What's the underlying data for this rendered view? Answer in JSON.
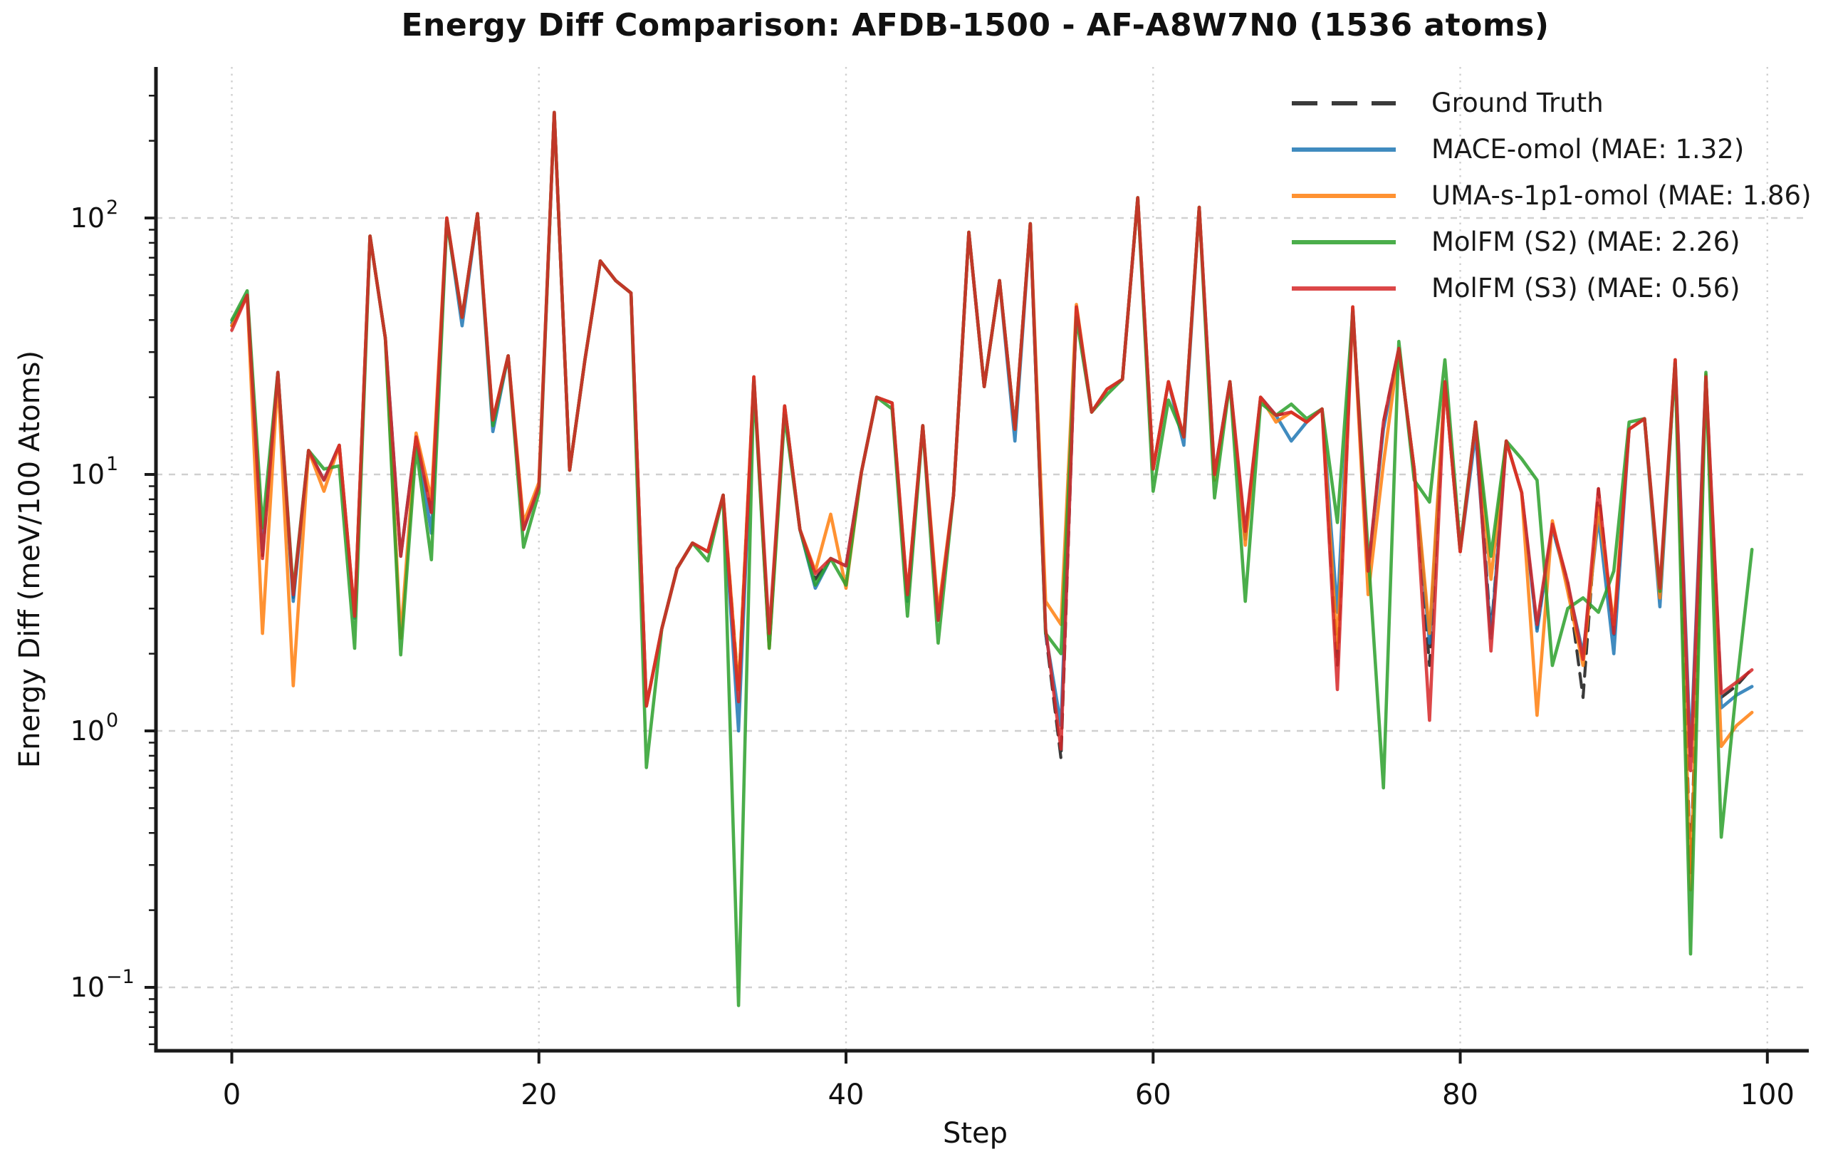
{
  "title": "Energy Diff Comparison: AFDB-1500 - AF-A8W7N0 (1536 atoms)",
  "axes": {
    "xlabel": "Step",
    "ylabel": "Energy Diff (meV/100 Atoms)",
    "x_ticks": [
      0,
      20,
      40,
      60,
      80,
      100
    ],
    "y_tick_exponents": [
      2,
      1,
      0,
      -1
    ]
  },
  "colors": {
    "ground_truth": "#3a3a3a",
    "mace": "#1f77b4",
    "uma": "#ff7f0e",
    "molfm_s2": "#2ca02c",
    "molfm_s3": "#d62728",
    "grid": "#cccccc",
    "spine": "#1a1a1a"
  },
  "chart_data": {
    "type": "line",
    "title": "Energy Diff Comparison: AFDB-1500 - AF-A8W7N0 (1536 atoms)",
    "xlabel": "Step",
    "ylabel": "Energy Diff (meV/100 Atoms)",
    "yscale": "log",
    "ylim": [
      0.04,
      385
    ],
    "xlim": [
      -5,
      104
    ],
    "grid": true,
    "legend_position": "upper right",
    "x_start": 0,
    "x_step": 1,
    "n_points": 100,
    "series": [
      {
        "name": "Ground Truth",
        "color": "#3a3a3a",
        "dashed": true,
        "values": [
          38,
          50,
          4.8,
          25,
          3.3,
          12.4,
          9.5,
          13,
          2.8,
          85,
          34,
          4.8,
          14,
          7.1,
          100,
          41,
          104,
          16.3,
          29,
          6.1,
          9,
          258,
          10.4,
          28,
          68,
          57,
          51,
          1.25,
          2.5,
          4.3,
          5.4,
          5,
          8.3,
          1.45,
          24,
          2.1,
          18.5,
          6.1,
          3.9,
          4.7,
          4.4,
          10.2,
          20,
          19,
          3.3,
          15.5,
          2.7,
          8.3,
          88,
          22,
          57,
          15,
          95,
          2.4,
          0.78,
          45,
          17.5,
          21.5,
          23.5,
          120,
          10.5,
          23,
          14,
          110,
          10,
          23,
          5.8,
          20,
          17,
          17.5,
          16,
          18,
          1.8,
          45,
          4.2,
          16,
          31,
          10.5,
          1.8,
          23,
          5,
          16,
          2.4,
          13.5,
          8.5,
          2.5,
          6.2,
          3.8,
          1.35,
          8.8,
          2.3,
          15,
          16.5,
          3.5,
          28,
          0.28,
          24,
          1.35,
          1.5,
          1.75
        ]
      },
      {
        "name": "MACE-omol (MAE: 1.32)",
        "color": "#1f77b4",
        "dashed": false,
        "values": [
          39,
          50,
          5,
          25,
          3.2,
          12.4,
          9.5,
          13,
          2.75,
          85,
          34,
          4.8,
          14,
          5.9,
          100,
          38,
          104,
          14.7,
          29,
          6.1,
          9,
          258,
          10.4,
          28,
          68,
          57,
          51,
          1.25,
          2.5,
          4.3,
          5.4,
          5,
          8.3,
          1,
          24,
          2.15,
          18.5,
          6.1,
          3.6,
          4.7,
          4.4,
          10.2,
          20,
          19,
          3.2,
          15.5,
          2.7,
          8.3,
          88,
          22,
          57,
          13.5,
          95,
          2.4,
          1.05,
          45,
          17.5,
          21.5,
          23.5,
          120,
          10.5,
          23,
          13,
          110,
          10,
          23,
          5.6,
          20,
          17,
          13.5,
          16,
          18,
          2.9,
          45,
          4.2,
          15,
          31,
          10.5,
          2.2,
          23,
          5,
          14.5,
          2.3,
          13.5,
          8.5,
          2.45,
          6.2,
          3.7,
          2,
          6.8,
          2,
          15,
          16.5,
          3.05,
          28,
          0.8,
          24,
          1.23,
          1.38,
          1.49
        ]
      },
      {
        "name": "UMA-s-1p1-omol (MAE: 1.86)",
        "color": "#ff7f0e",
        "dashed": false,
        "values": [
          38,
          50,
          2.4,
          24,
          1.5,
          12.4,
          8.6,
          13,
          2.8,
          85,
          34,
          2.3,
          14.5,
          8,
          100,
          41,
          104,
          16.3,
          29,
          6.5,
          9.3,
          258,
          10.4,
          28,
          68,
          57,
          51,
          1.25,
          2.5,
          4.3,
          5.4,
          5,
          8.3,
          1.45,
          24,
          2.1,
          18.5,
          6.1,
          4.2,
          7,
          3.6,
          10.2,
          20,
          19,
          3.4,
          15.5,
          2.9,
          8.3,
          88,
          22,
          57,
          15,
          95,
          3.2,
          2.6,
          46,
          17.5,
          21.5,
          23.5,
          120,
          10.5,
          23,
          14,
          110,
          9.5,
          23,
          5.3,
          20,
          16,
          17.5,
          16,
          18,
          2.1,
          45,
          3.4,
          11,
          31,
          10.5,
          2.4,
          23,
          5,
          16,
          3.9,
          13.5,
          8.5,
          1.15,
          6.6,
          3.5,
          1.8,
          7.4,
          2.6,
          15,
          16.5,
          3.3,
          28,
          0.24,
          24.5,
          0.87,
          1.05,
          1.18
        ]
      },
      {
        "name": "MolFM (S2) (MAE: 2.26)",
        "color": "#2ca02c",
        "dashed": false,
        "values": [
          40,
          52,
          6.2,
          25,
          3.5,
          12.4,
          10.5,
          10.8,
          2.1,
          85,
          34,
          1.98,
          12.7,
          4.65,
          97,
          41,
          104,
          15.5,
          29,
          5.2,
          8.5,
          258,
          10.4,
          28,
          68,
          57,
          51,
          0.72,
          2.5,
          4.3,
          5.4,
          4.6,
          8.3,
          0.085,
          23,
          2.1,
          17,
          6.1,
          3.7,
          4.7,
          3.7,
          10.2,
          20,
          18,
          2.8,
          15.5,
          2.2,
          8.3,
          88,
          22,
          57,
          15,
          95,
          2.4,
          2,
          41,
          17.5,
          20.5,
          23.5,
          120,
          8.6,
          19.5,
          14,
          110,
          8.1,
          23,
          3.2,
          19,
          17,
          18.8,
          16.5,
          18,
          6.5,
          43,
          5,
          0.6,
          33,
          9.5,
          7.8,
          28,
          5.2,
          16,
          4.8,
          13.5,
          11.5,
          9.5,
          1.8,
          3,
          3.3,
          2.9,
          4.2,
          16,
          16.5,
          3.5,
          27,
          0.135,
          25,
          0.385,
          1.5,
          5.1
        ]
      },
      {
        "name": "MolFM (S3) (MAE: 0.56)",
        "color": "#d62728",
        "dashed": false,
        "values": [
          36.5,
          50,
          4.7,
          25,
          3.4,
          12.4,
          9.5,
          13,
          2.8,
          85,
          34,
          4.8,
          14,
          7.1,
          100,
          41,
          104,
          16.3,
          29,
          6.1,
          9,
          258,
          10.4,
          28,
          68,
          57,
          51,
          1.25,
          2.5,
          4.3,
          5.4,
          5,
          8.3,
          1.3,
          24,
          2.4,
          18.5,
          6.1,
          4.1,
          4.7,
          4.4,
          10.2,
          20,
          19,
          3.4,
          15.5,
          2.7,
          8.3,
          88,
          22,
          57,
          15,
          95,
          2.5,
          0.85,
          45,
          17.5,
          21.5,
          23.5,
          120,
          10.5,
          23,
          14,
          110,
          10,
          23,
          6,
          20,
          17,
          17.5,
          16,
          18,
          1.45,
          45,
          4.2,
          16,
          31,
          10.5,
          1.1,
          23,
          5,
          16,
          2.05,
          13.5,
          8.5,
          2.6,
          6.4,
          3.8,
          1.9,
          8.8,
          2.4,
          15,
          16.5,
          3.6,
          28,
          0.7,
          24,
          1.4,
          1.55,
          1.73
        ]
      }
    ]
  }
}
